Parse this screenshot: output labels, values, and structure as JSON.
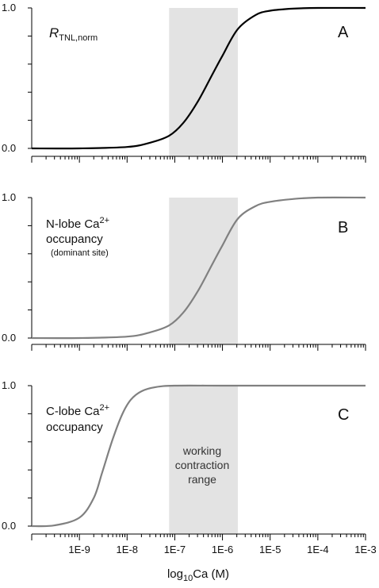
{
  "chart_data": [
    {
      "type": "line",
      "panel_letter": "A",
      "ylabel_main": "R",
      "ylabel_sub": "TNL,norm",
      "xscale": "log",
      "xlim": [
        1e-10,
        0.001
      ],
      "ylim": [
        0.0,
        1.0
      ],
      "ytick_labels": [
        "0.0",
        "1.0"
      ],
      "shaded_range": [
        7.6e-08,
        2.1e-06
      ],
      "series": [
        {
          "color": "#000000",
          "x": [
            1e-10,
            1e-09,
            1e-08,
            3e-08,
            7.6e-08,
            1.5e-07,
            3e-07,
            6e-07,
            1e-06,
            2.1e-06,
            5e-06,
            1e-05,
            3e-05,
            0.0001,
            0.001
          ],
          "y": [
            0.0,
            0.0,
            0.01,
            0.04,
            0.09,
            0.18,
            0.33,
            0.52,
            0.66,
            0.85,
            0.95,
            0.98,
            0.995,
            1.0,
            1.0
          ]
        }
      ]
    },
    {
      "type": "line",
      "panel_letter": "B",
      "annotation_line1": "N-lobe Ca",
      "annotation_sup": "2+",
      "annotation_line2": "occupancy",
      "annotation_line3": "(dominant site)",
      "xscale": "log",
      "xlim": [
        1e-10,
        0.001
      ],
      "ylim": [
        0.0,
        1.0
      ],
      "ytick_labels": [
        "0.0",
        "1.0"
      ],
      "shaded_range": [
        7.6e-08,
        2.1e-06
      ],
      "series": [
        {
          "color": "#808080",
          "x": [
            1e-10,
            1e-09,
            1e-08,
            3e-08,
            7.6e-08,
            1.5e-07,
            3e-07,
            6e-07,
            1e-06,
            2.1e-06,
            5e-06,
            1e-05,
            3e-05,
            0.0001,
            0.001
          ],
          "y": [
            0.0,
            0.0,
            0.01,
            0.04,
            0.09,
            0.18,
            0.33,
            0.52,
            0.66,
            0.85,
            0.94,
            0.97,
            0.99,
            1.0,
            1.0
          ]
        }
      ]
    },
    {
      "type": "line",
      "panel_letter": "C",
      "annotation_line1": "C-lobe Ca",
      "annotation_sup": "2+",
      "annotation_line2": "occupancy",
      "shaded_text": [
        "working",
        "contraction",
        "range"
      ],
      "xscale": "log",
      "xlim": [
        1e-10,
        0.001
      ],
      "ylim": [
        0.0,
        1.0
      ],
      "ytick_labels": [
        "0.0",
        "1.0"
      ],
      "xtick_labels": [
        "1E-9",
        "1E-8",
        "1E-7",
        "1E-6",
        "1E-5",
        "1E-4",
        "1E-3"
      ],
      "xlabel_main": "log",
      "xlabel_sub": "10",
      "xlabel_tail": "Ca (M)",
      "shaded_range": [
        7.6e-08,
        2.1e-06
      ],
      "series": [
        {
          "color": "#808080",
          "x": [
            1e-10,
            3e-10,
            1e-09,
            2e-09,
            3e-09,
            5e-09,
            8e-09,
            1.2e-08,
            2e-08,
            4e-08,
            1e-07,
            1e-06,
            1e-05,
            0.001
          ],
          "y": [
            0.0,
            0.005,
            0.06,
            0.2,
            0.38,
            0.62,
            0.8,
            0.9,
            0.96,
            0.99,
            1.0,
            1.0,
            1.0,
            1.0
          ]
        }
      ]
    }
  ]
}
